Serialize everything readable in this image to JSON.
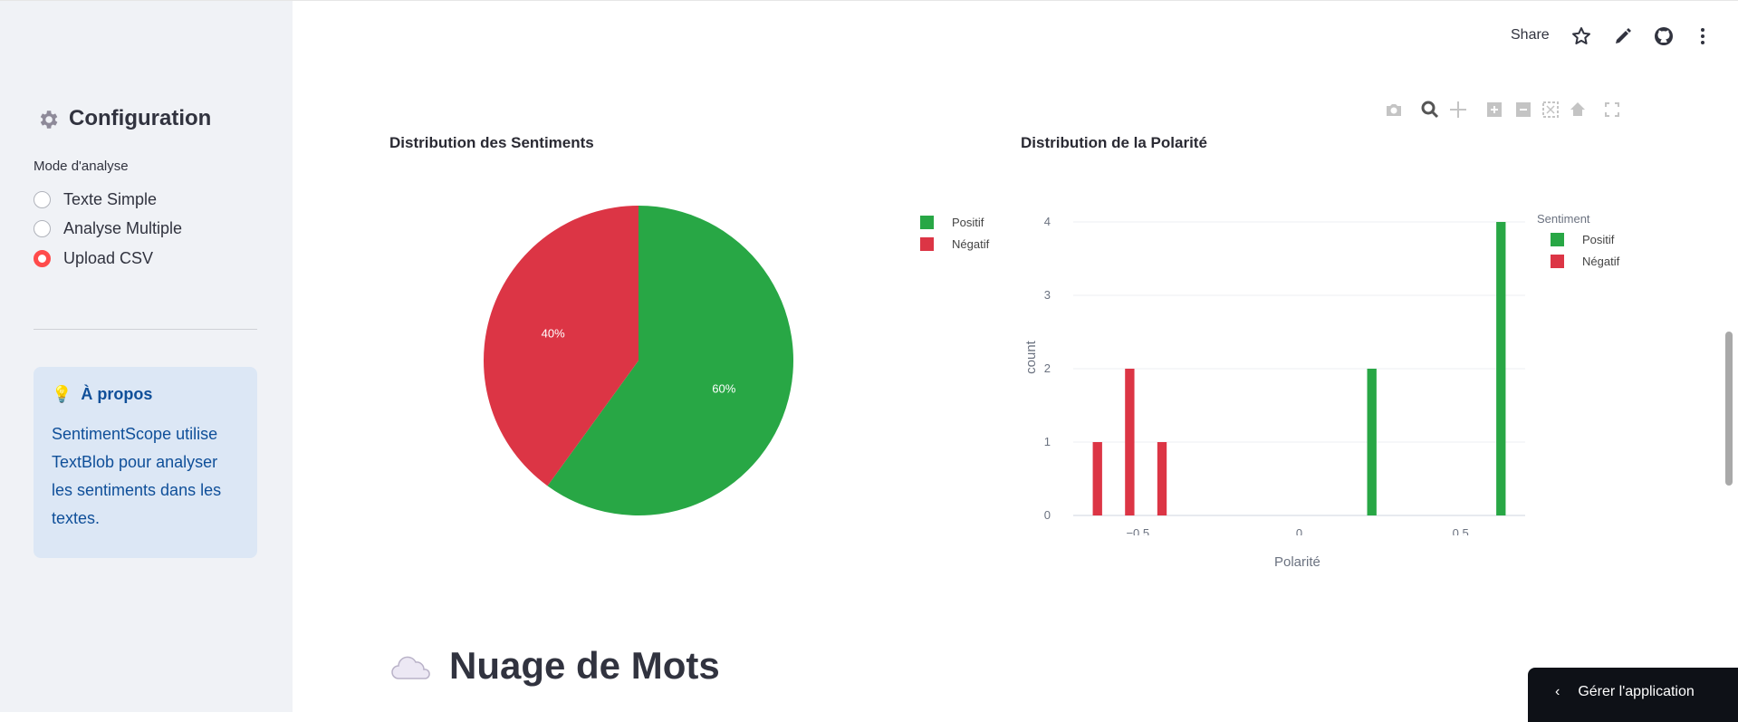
{
  "header": {
    "share_label": "Share",
    "icons": [
      "star-icon",
      "pencil-icon",
      "github-icon",
      "more-vert-icon"
    ]
  },
  "sidebar": {
    "title": "Configuration",
    "title_icon": "gear-icon",
    "mode_label": "Mode d'analyse",
    "options": [
      {
        "label": "Texte Simple",
        "selected": false
      },
      {
        "label": "Analyse Multiple",
        "selected": false
      },
      {
        "label": "Upload CSV",
        "selected": true
      }
    ],
    "info": {
      "icon": "lightbulb-icon",
      "title": "À propos",
      "text": "SentimentScope utilise TextBlob pour analyser les sentiments dans les textes."
    }
  },
  "colors": {
    "positive": "#28a745",
    "negative": "#dc3545",
    "accent": "#ff4b4b"
  },
  "chart_data": [
    {
      "type": "pie",
      "title": "Distribution des Sentiments",
      "categories": [
        "Positif",
        "Négatif"
      ],
      "values": [
        60,
        40
      ],
      "labels": [
        "60%",
        "40%"
      ],
      "colors": [
        "#28a745",
        "#dc3545"
      ],
      "legend": "right"
    },
    {
      "type": "bar",
      "title": "Distribution de la Polarité",
      "xlabel": "Polarité",
      "ylabel": "count",
      "legend_title": "Sentiment",
      "legend": [
        {
          "name": "Positif",
          "color": "#28a745"
        },
        {
          "name": "Négatif",
          "color": "#dc3545"
        }
      ],
      "xlim": [
        -0.7,
        0.7
      ],
      "ylim": [
        0,
        4
      ],
      "xticks": [
        "-0.5",
        "0",
        "0.5"
      ],
      "xtick_values": [
        -0.5,
        0,
        0.5
      ],
      "yticks": [
        "0",
        "1",
        "2",
        "3",
        "4"
      ],
      "series": [
        {
          "name": "Négatif",
          "color": "#dc3545",
          "x": [
            -0.625,
            -0.525,
            -0.425
          ],
          "y": [
            1,
            2,
            1
          ]
        },
        {
          "name": "Positif",
          "color": "#28a745",
          "x": [
            0.225,
            0.625
          ],
          "y": [
            2,
            4
          ]
        }
      ],
      "bin_width": 0.05
    }
  ],
  "section": {
    "icon": "cloud-icon",
    "title": "Nuage de Mots"
  },
  "manage_app": {
    "label": "Gérer l'application"
  }
}
